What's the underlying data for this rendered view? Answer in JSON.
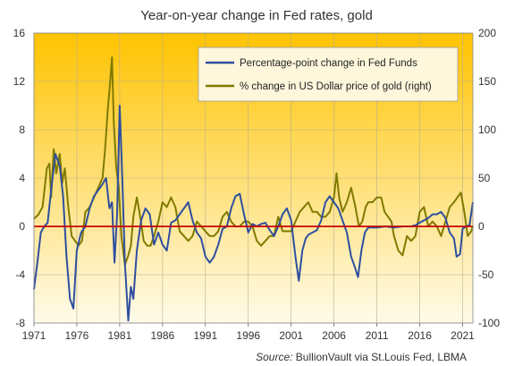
{
  "chart_data": {
    "type": "line",
    "title": "Year-on-year  change in Fed rates, gold",
    "source_label": "Source:",
    "source_text": " BullionVault via  St.Louis Fed,  LBMA",
    "x_ticks": [
      "1971",
      "1976",
      "1981",
      "1986",
      "1991",
      "1996",
      "2001",
      "2006",
      "2011",
      "2016",
      "2021"
    ],
    "x_range": [
      1971,
      2022.2
    ],
    "left_axis": {
      "ylim": [
        -8,
        16
      ],
      "ticks": [
        -8,
        -4,
        0,
        4,
        8,
        12,
        16
      ],
      "tick_labels": [
        "-8",
        "-4",
        "0",
        "4",
        "8",
        "12",
        "16"
      ]
    },
    "right_axis": {
      "ylim": [
        -100,
        200
      ],
      "ticks": [
        -100,
        -50,
        0,
        50,
        100,
        150,
        200
      ],
      "tick_labels": [
        "-100",
        "-50",
        "0",
        "50",
        "100",
        "150",
        "200"
      ]
    },
    "grid": true,
    "legend_position": "top-right",
    "colors": {
      "fed": "#2E4FA0",
      "gold": "#807A00",
      "zero_line": "#CC0000",
      "bg_top": "#FFC300",
      "bg_bottom": "#FFFBEA"
    },
    "series": [
      {
        "name": "Percentage-point change in Fed Funds",
        "axis": "left",
        "x": [
          1971.0,
          1971.4,
          1971.8,
          1972.2,
          1972.6,
          1973.0,
          1973.5,
          1974.0,
          1974.4,
          1974.8,
          1975.2,
          1975.6,
          1976.0,
          1976.5,
          1977.0,
          1977.5,
          1978.0,
          1978.5,
          1979.0,
          1979.4,
          1979.8,
          1980.1,
          1980.4,
          1980.7,
          1981.0,
          1981.3,
          1981.6,
          1982.0,
          1982.3,
          1982.6,
          1983.0,
          1983.5,
          1984.0,
          1984.5,
          1985.0,
          1985.5,
          1986.0,
          1986.5,
          1987.0,
          1987.5,
          1988.0,
          1988.5,
          1989.0,
          1989.5,
          1990.0,
          1990.5,
          1991.0,
          1991.5,
          1992.0,
          1992.5,
          1993.0,
          1993.5,
          1994.0,
          1994.5,
          1995.0,
          1995.5,
          1996.0,
          1996.5,
          1997.0,
          1997.5,
          1998.0,
          1998.5,
          1999.0,
          1999.5,
          2000.0,
          2000.5,
          2001.0,
          2001.5,
          2001.9,
          2002.3,
          2002.7,
          2003.0,
          2003.5,
          2004.0,
          2004.5,
          2005.0,
          2005.5,
          2006.0,
          2006.5,
          2007.0,
          2007.5,
          2008.0,
          2008.5,
          2008.8,
          2009.2,
          2009.6,
          2010.0,
          2011.0,
          2012.0,
          2013.0,
          2014.0,
          2015.0,
          2015.5,
          2016.0,
          2016.5,
          2017.0,
          2017.5,
          2018.0,
          2018.5,
          2019.0,
          2019.5,
          2020.0,
          2020.3,
          2020.7,
          2021.0,
          2021.4,
          2021.8,
          2022.2
        ],
        "values": [
          -5.2,
          -3.0,
          -0.5,
          0.0,
          0.3,
          3.0,
          6.0,
          5.0,
          2.5,
          -2.5,
          -6.0,
          -6.8,
          -2.0,
          -0.5,
          0.0,
          1.5,
          2.5,
          3.0,
          3.5,
          4.0,
          1.5,
          2.0,
          -3.0,
          1.0,
          10.0,
          4.0,
          -3.0,
          -7.8,
          -5.0,
          -6.0,
          -2.0,
          0.5,
          1.5,
          1.0,
          -1.5,
          -0.5,
          -1.5,
          -2.0,
          0.3,
          0.5,
          1.0,
          1.5,
          2.0,
          0.5,
          -0.5,
          -1.0,
          -2.5,
          -3.0,
          -2.5,
          -1.5,
          -0.2,
          0.0,
          1.5,
          2.5,
          2.7,
          1.0,
          -0.5,
          0.2,
          0.0,
          0.2,
          0.3,
          -0.3,
          -0.8,
          0.0,
          1.0,
          1.5,
          0.5,
          -2.5,
          -4.5,
          -2.0,
          -1.0,
          -0.7,
          -0.5,
          -0.3,
          0.5,
          2.0,
          2.5,
          2.0,
          1.5,
          0.5,
          -0.5,
          -2.5,
          -3.5,
          -4.2,
          -2.0,
          -0.5,
          -0.1,
          -0.1,
          0.0,
          -0.1,
          0.0,
          0.0,
          0.1,
          0.3,
          0.5,
          0.7,
          1.0,
          1.0,
          1.2,
          0.7,
          -0.5,
          -1.0,
          -2.5,
          -2.3,
          -0.2,
          0.0,
          0.1,
          2.0
        ]
      },
      {
        "name": "% change in US Dollar price of gold (right)",
        "axis": "right",
        "x": [
          1971.0,
          1971.5,
          1972.0,
          1972.5,
          1972.8,
          1973.0,
          1973.3,
          1973.6,
          1974.0,
          1974.3,
          1974.6,
          1975.0,
          1975.4,
          1975.8,
          1976.2,
          1976.6,
          1977.0,
          1977.5,
          1978.0,
          1978.5,
          1979.0,
          1979.3,
          1979.6,
          1979.9,
          1980.1,
          1980.3,
          1980.6,
          1980.9,
          1981.2,
          1981.6,
          1982.0,
          1982.3,
          1982.6,
          1983.0,
          1983.4,
          1983.8,
          1984.2,
          1984.6,
          1985.0,
          1985.5,
          1986.0,
          1986.5,
          1987.0,
          1987.5,
          1988.0,
          1988.5,
          1989.0,
          1989.5,
          1990.0,
          1990.5,
          1991.0,
          1991.5,
          1992.0,
          1992.5,
          1993.0,
          1993.5,
          1994.0,
          1994.5,
          1995.0,
          1995.5,
          1996.0,
          1996.5,
          1997.0,
          1997.5,
          1998.0,
          1998.5,
          1999.0,
          1999.5,
          2000.0,
          2000.5,
          2001.0,
          2001.5,
          2002.0,
          2002.5,
          2003.0,
          2003.5,
          2004.0,
          2004.5,
          2005.0,
          2005.5,
          2006.0,
          2006.3,
          2006.6,
          2007.0,
          2007.5,
          2008.0,
          2008.5,
          2008.9,
          2009.3,
          2009.7,
          2010.0,
          2010.5,
          2011.0,
          2011.5,
          2011.9,
          2012.3,
          2012.7,
          2013.0,
          2013.5,
          2014.0,
          2014.5,
          2015.0,
          2015.5,
          2016.0,
          2016.5,
          2017.0,
          2017.5,
          2018.0,
          2018.5,
          2019.0,
          2019.5,
          2020.0,
          2020.4,
          2020.8,
          2021.2,
          2021.6,
          2022.0,
          2022.2
        ],
        "values": [
          8,
          12,
          20,
          60,
          65,
          30,
          80,
          55,
          75,
          45,
          60,
          20,
          -10,
          -15,
          -20,
          -15,
          15,
          20,
          30,
          40,
          50,
          80,
          120,
          150,
          175,
          110,
          60,
          40,
          -10,
          -40,
          -30,
          -20,
          10,
          30,
          10,
          -15,
          -20,
          -20,
          -10,
          5,
          25,
          20,
          30,
          20,
          -5,
          -10,
          -15,
          -10,
          5,
          0,
          -5,
          -10,
          -10,
          -5,
          10,
          15,
          5,
          0,
          0,
          5,
          5,
          0,
          -15,
          -20,
          -15,
          -10,
          -10,
          10,
          -5,
          -5,
          -5,
          5,
          15,
          20,
          25,
          15,
          15,
          10,
          10,
          15,
          30,
          55,
          30,
          15,
          25,
          40,
          20,
          0,
          5,
          20,
          25,
          25,
          30,
          30,
          15,
          10,
          5,
          -10,
          -25,
          -30,
          -10,
          -15,
          -10,
          15,
          20,
          0,
          5,
          0,
          -10,
          5,
          20,
          25,
          30,
          35,
          15,
          -10,
          -5,
          0
        ]
      }
    ]
  }
}
